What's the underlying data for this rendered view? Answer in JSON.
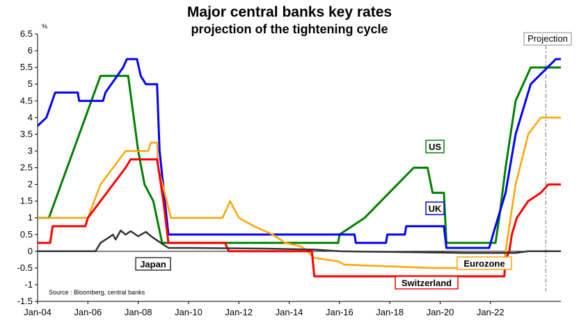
{
  "chart_data": {
    "type": "line",
    "title": "Major central banks key rates",
    "subtitle": "projection of the tightening cycle",
    "ylabel": "%",
    "ylim": [
      -1.5,
      6.5
    ],
    "yticks": [
      -1.5,
      -1,
      -0.5,
      0,
      0.5,
      1,
      1.5,
      2,
      2.5,
      3,
      3.5,
      4,
      4.5,
      5,
      5.5,
      6,
      6.5
    ],
    "ytick_labels": [
      "-1.5",
      "-1",
      "-0.5",
      "0",
      "0.5",
      "1",
      "1.5",
      "2",
      "2.5",
      "3",
      "3.5",
      "4",
      "4.5",
      "5",
      "5.5",
      "6",
      "6.5"
    ],
    "xlim": [
      2004.0,
      2024.8
    ],
    "xticks": [
      2004,
      2006,
      2008,
      2010,
      2012,
      2014,
      2016,
      2018,
      2020,
      2022
    ],
    "xtick_labels": [
      "Jan-04",
      "Jan-06",
      "Jan-08",
      "Jan-10",
      "Jan-12",
      "Jan-14",
      "Jan-16",
      "Jan-18",
      "Jan-20",
      "Jan-22"
    ],
    "projection_start": 2024.2,
    "projection_label": "Projection",
    "source": "Source : Bloomberg, central banks",
    "series": [
      {
        "name": "US",
        "color": "#008000",
        "label_at": [
          2024.0,
          3.1
        ],
        "points": [
          [
            2004.0,
            1.0
          ],
          [
            2004.45,
            1.0
          ],
          [
            2006.5,
            5.25
          ],
          [
            2007.6,
            5.25
          ],
          [
            2008.0,
            3.0
          ],
          [
            2008.25,
            2.0
          ],
          [
            2008.6,
            1.5
          ],
          [
            2008.95,
            0.25
          ],
          [
            2015.95,
            0.25
          ],
          [
            2016.0,
            0.5
          ],
          [
            2017.0,
            1.0
          ],
          [
            2018.95,
            2.5
          ],
          [
            2019.5,
            2.5
          ],
          [
            2019.7,
            1.75
          ],
          [
            2020.15,
            1.75
          ],
          [
            2020.25,
            0.25
          ],
          [
            2022.2,
            0.25
          ],
          [
            2022.35,
            1.0
          ],
          [
            2022.6,
            2.5
          ],
          [
            2023.0,
            4.5
          ],
          [
            2023.6,
            5.5
          ],
          [
            2024.8,
            5.5
          ]
        ]
      },
      {
        "name": "UK",
        "color": "#0000ff",
        "label_at": [
          2024.0,
          1.25
        ],
        "points": [
          [
            2004.0,
            3.75
          ],
          [
            2004.35,
            4.0
          ],
          [
            2004.7,
            4.75
          ],
          [
            2005.6,
            4.75
          ],
          [
            2005.65,
            4.5
          ],
          [
            2006.6,
            4.5
          ],
          [
            2006.7,
            4.75
          ],
          [
            2007.4,
            5.5
          ],
          [
            2007.55,
            5.75
          ],
          [
            2007.95,
            5.75
          ],
          [
            2008.1,
            5.25
          ],
          [
            2008.3,
            5.0
          ],
          [
            2008.75,
            5.0
          ],
          [
            2008.85,
            3.0
          ],
          [
            2009.2,
            0.5
          ],
          [
            2016.6,
            0.5
          ],
          [
            2016.65,
            0.25
          ],
          [
            2017.85,
            0.25
          ],
          [
            2017.9,
            0.5
          ],
          [
            2018.6,
            0.5
          ],
          [
            2018.65,
            0.75
          ],
          [
            2020.15,
            0.75
          ],
          [
            2020.25,
            0.1
          ],
          [
            2021.95,
            0.1
          ],
          [
            2022.1,
            0.5
          ],
          [
            2022.6,
            1.75
          ],
          [
            2023.0,
            3.5
          ],
          [
            2023.6,
            5.0
          ],
          [
            2024.6,
            5.75
          ],
          [
            2024.8,
            5.75
          ]
        ]
      },
      {
        "name": "Eurozone",
        "color": "#ffa500",
        "label_at": [
          2024.0,
          -0.45
        ],
        "points": [
          [
            2004.0,
            1.0
          ],
          [
            2006.0,
            1.0
          ],
          [
            2006.5,
            2.0
          ],
          [
            2007.5,
            3.0
          ],
          [
            2008.4,
            3.0
          ],
          [
            2008.5,
            3.25
          ],
          [
            2008.75,
            3.25
          ],
          [
            2008.8,
            2.5
          ],
          [
            2009.3,
            1.0
          ],
          [
            2011.35,
            1.0
          ],
          [
            2011.5,
            1.25
          ],
          [
            2011.65,
            1.5
          ],
          [
            2012.0,
            1.0
          ],
          [
            2012.6,
            0.75
          ],
          [
            2013.35,
            0.5
          ],
          [
            2013.85,
            0.25
          ],
          [
            2014.45,
            0.15
          ],
          [
            2014.65,
            0.05
          ],
          [
            2015.0,
            -0.2
          ],
          [
            2015.95,
            -0.3
          ],
          [
            2016.2,
            -0.4
          ],
          [
            2019.7,
            -0.5
          ],
          [
            2022.5,
            -0.5
          ],
          [
            2022.6,
            0.0
          ],
          [
            2022.75,
            0.75
          ],
          [
            2023.0,
            2.0
          ],
          [
            2023.5,
            3.5
          ],
          [
            2024.0,
            4.0
          ],
          [
            2024.8,
            4.0
          ]
        ]
      },
      {
        "name": "Switzerland",
        "color": "#ff0000",
        "label_at": [
          2021.3,
          -1.05
        ],
        "points": [
          [
            2004.0,
            0.25
          ],
          [
            2004.5,
            0.25
          ],
          [
            2004.6,
            0.75
          ],
          [
            2005.9,
            0.75
          ],
          [
            2006.0,
            1.0
          ],
          [
            2007.5,
            2.5
          ],
          [
            2007.7,
            2.75
          ],
          [
            2008.75,
            2.75
          ],
          [
            2009.0,
            1.5
          ],
          [
            2009.2,
            0.25
          ],
          [
            2011.45,
            0.25
          ],
          [
            2011.6,
            0.0
          ],
          [
            2014.9,
            0.0
          ],
          [
            2015.0,
            -0.75
          ],
          [
            2022.55,
            -0.75
          ],
          [
            2022.6,
            -0.25
          ],
          [
            2022.75,
            0.0
          ],
          [
            2022.85,
            0.5
          ],
          [
            2023.05,
            1.0
          ],
          [
            2023.5,
            1.5
          ],
          [
            2024.0,
            1.75
          ],
          [
            2024.3,
            2.0
          ],
          [
            2024.8,
            2.0
          ]
        ]
      },
      {
        "name": "Japan",
        "color": "#333333",
        "label_at": [
          2008.4,
          -0.45
        ],
        "points": [
          [
            2004.0,
            0.0
          ],
          [
            2006.3,
            0.0
          ],
          [
            2006.5,
            0.25
          ],
          [
            2007.0,
            0.5
          ],
          [
            2007.1,
            0.35
          ],
          [
            2007.3,
            0.62
          ],
          [
            2007.5,
            0.5
          ],
          [
            2007.7,
            0.6
          ],
          [
            2008.0,
            0.45
          ],
          [
            2008.3,
            0.58
          ],
          [
            2008.6,
            0.4
          ],
          [
            2008.9,
            0.25
          ],
          [
            2009.2,
            0.1
          ],
          [
            2010.0,
            0.1
          ],
          [
            2013.0,
            0.08
          ],
          [
            2015.0,
            0.05
          ],
          [
            2016.0,
            0.0
          ],
          [
            2018.0,
            -0.02
          ],
          [
            2020.0,
            -0.04
          ],
          [
            2021.0,
            -0.05
          ],
          [
            2023.0,
            -0.05
          ],
          [
            2023.5,
            0.0
          ],
          [
            2024.8,
            0.0
          ]
        ]
      }
    ]
  }
}
